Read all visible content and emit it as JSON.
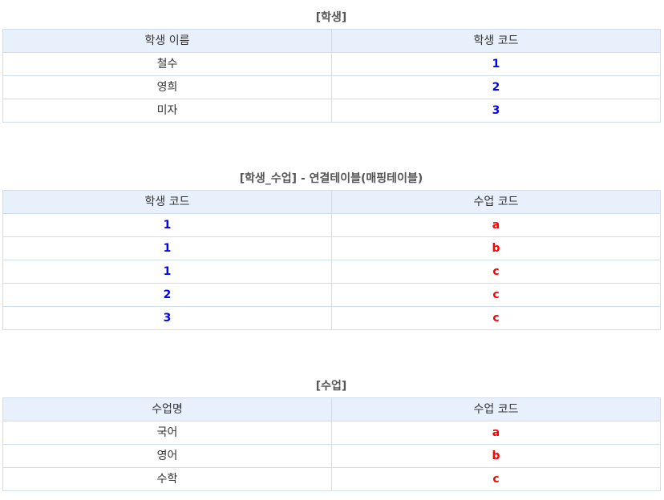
{
  "students": {
    "caption": "[학생]",
    "headers": [
      "학생 이름",
      "학생  코드"
    ],
    "rows": [
      [
        "철수",
        "1"
      ],
      [
        "영희",
        "2"
      ],
      [
        "미자",
        "3"
      ]
    ]
  },
  "mapping": {
    "caption": "[학생_수업] - 연결테이블(매핑테이블)",
    "headers": [
      "학생 코드",
      "수업 코드"
    ],
    "rows": [
      [
        "1",
        "a"
      ],
      [
        "1",
        "b"
      ],
      [
        "1",
        "c"
      ],
      [
        "2",
        "c"
      ],
      [
        "3",
        "c"
      ]
    ]
  },
  "classes": {
    "caption": "[수업]",
    "headers": [
      "수업명",
      "수업  코드"
    ],
    "rows": [
      [
        "국어",
        "a"
      ],
      [
        "영어",
        "b"
      ],
      [
        "수학",
        "c"
      ]
    ]
  },
  "colors": {
    "student_code": "#0000ff",
    "class_code": "#ff0000",
    "header_bg": "#e8f0fb",
    "border": "#cfdce9"
  }
}
